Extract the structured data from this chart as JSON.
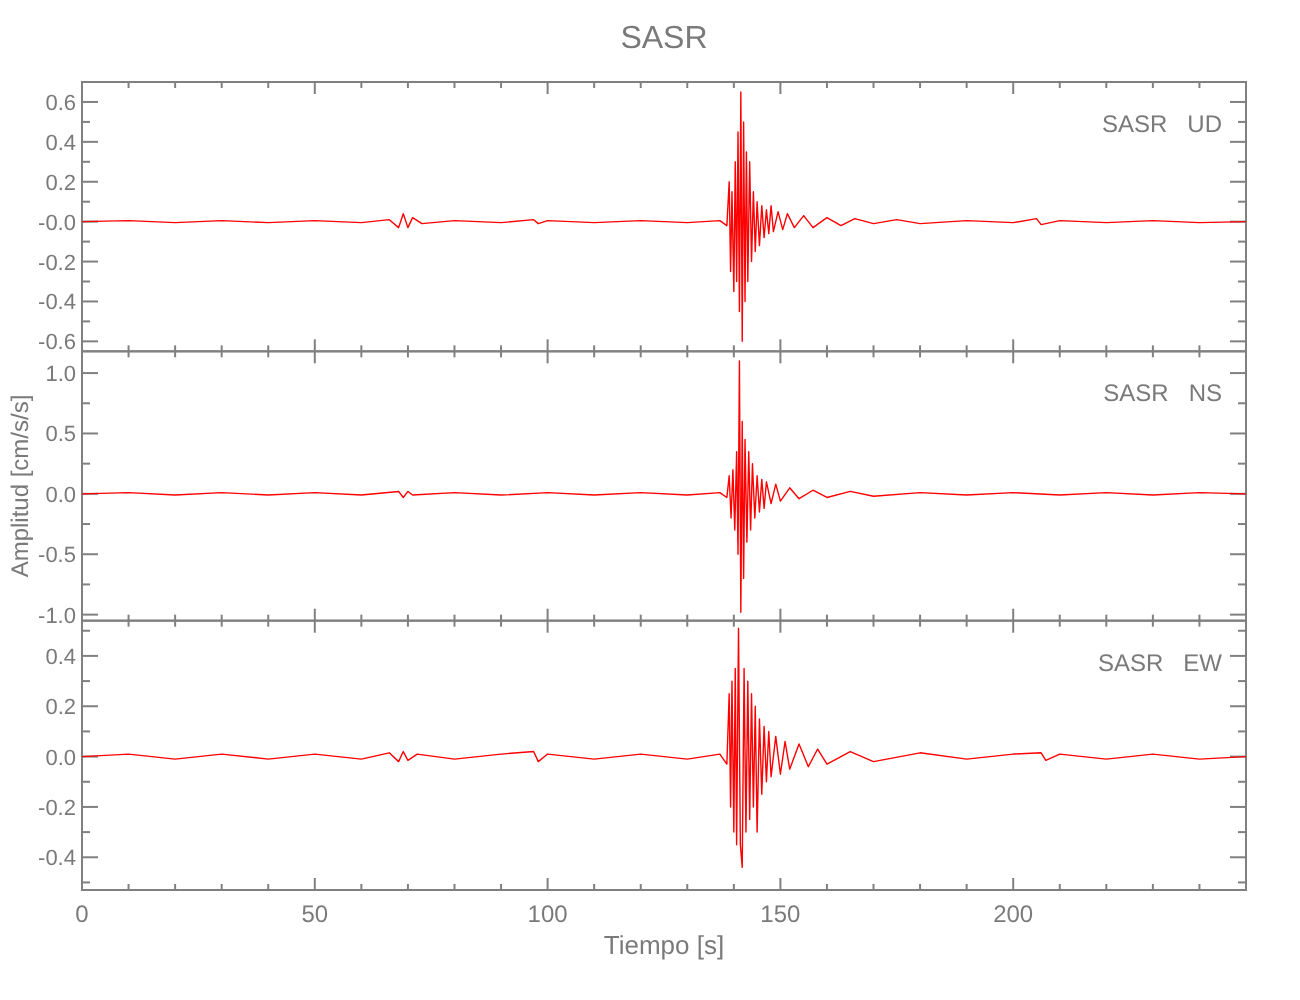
{
  "chart_data": [
    {
      "type": "line",
      "title": "SASR",
      "annotations": [
        "SASR   UD"
      ],
      "tick_labels": "y",
      "xlim": [
        0,
        250
      ],
      "ylim": [
        -0.65,
        0.7
      ],
      "xticks": [
        0,
        {
          "value": 10,
          "label": null
        },
        {
          "value": 20,
          "label": null
        },
        {
          "value": 30,
          "label": null
        },
        {
          "value": 40,
          "label": null
        },
        50,
        {
          "value": 60,
          "label": null
        },
        {
          "value": 70,
          "label": null
        },
        {
          "value": 80,
          "label": null
        },
        {
          "value": 90,
          "label": null
        },
        100,
        {
          "value": 110,
          "label": null
        },
        {
          "value": 120,
          "label": null
        },
        {
          "value": 130,
          "label": null
        },
        {
          "value": 140,
          "label": null
        },
        150,
        {
          "value": 160,
          "label": null
        },
        {
          "value": 170,
          "label": null
        },
        {
          "value": 180,
          "label": null
        },
        {
          "value": 190,
          "label": null
        },
        200,
        {
          "value": 210,
          "label": null
        },
        {
          "value": 220,
          "label": null
        },
        {
          "value": 230,
          "label": null
        },
        {
          "value": 240,
          "label": null
        }
      ],
      "yticks": [
        {
          "value": -0.6,
          "label": "-0.6"
        },
        {
          "value": -0.5,
          "label": null
        },
        {
          "value": -0.4,
          "label": "-0.4"
        },
        {
          "value": -0.3,
          "label": null
        },
        {
          "value": -0.2,
          "label": "-0.2"
        },
        {
          "value": -0.1,
          "label": null
        },
        {
          "value": 0,
          "label": "-0.0"
        },
        {
          "value": 0.1,
          "label": null
        },
        {
          "value": 0.2,
          "label": "0.2"
        },
        {
          "value": 0.3,
          "label": null
        },
        {
          "value": 0.4,
          "label": "0.4"
        },
        {
          "value": 0.5,
          "label": null
        },
        {
          "value": 0.6,
          "label": "0.6"
        }
      ],
      "series": [
        {
          "color": "#ff0000",
          "x": [
            0,
            10,
            20,
            30,
            40,
            50,
            60,
            66,
            68,
            69,
            70,
            71,
            73,
            80,
            90,
            97,
            98,
            100,
            110,
            120,
            130,
            137,
            138.5,
            139,
            139.3,
            139.6,
            140,
            140.3,
            140.6,
            140.9,
            141.2,
            141.5,
            141.8,
            142.1,
            142.4,
            142.7,
            143,
            143.4,
            143.8,
            144.2,
            144.6,
            145,
            145.5,
            146,
            146.5,
            147,
            147.5,
            148,
            148.5,
            149.5,
            150.5,
            151.5,
            153,
            155,
            157,
            160,
            163,
            166,
            170,
            175,
            180,
            190,
            200,
            205,
            206,
            210,
            220,
            230,
            240,
            250
          ],
          "values": [
            0,
            0.005,
            -0.005,
            0.005,
            -0.005,
            0.005,
            -0.005,
            0.01,
            -0.03,
            0.04,
            -0.03,
            0.02,
            -0.01,
            0.005,
            -0.005,
            0.01,
            -0.01,
            0.005,
            -0.005,
            0.005,
            -0.005,
            0.005,
            -0.02,
            0.2,
            -0.25,
            0.15,
            -0.35,
            0.3,
            -0.3,
            0.45,
            -0.45,
            0.65,
            -0.6,
            0.5,
            -0.4,
            0.35,
            -0.3,
            0.3,
            -0.2,
            0.15,
            -0.15,
            0.1,
            -0.12,
            0.08,
            -0.08,
            0.06,
            -0.06,
            0.08,
            -0.05,
            0.05,
            -0.04,
            0.04,
            -0.03,
            0.03,
            -0.03,
            0.02,
            -0.02,
            0.015,
            -0.01,
            0.01,
            -0.01,
            0.005,
            -0.005,
            0.015,
            -0.015,
            0.005,
            -0.005,
            0.005,
            -0.005,
            0
          ]
        }
      ]
    },
    {
      "type": "line",
      "ylabel": "Amplitud [cm/s/s]",
      "annotations": [
        "SASR   NS"
      ],
      "tick_labels": "y",
      "xlim": [
        0,
        250
      ],
      "ylim": [
        -1.05,
        1.18
      ],
      "xticks": [
        0,
        {
          "value": 10,
          "label": null
        },
        {
          "value": 20,
          "label": null
        },
        {
          "value": 30,
          "label": null
        },
        {
          "value": 40,
          "label": null
        },
        50,
        {
          "value": 60,
          "label": null
        },
        {
          "value": 70,
          "label": null
        },
        {
          "value": 80,
          "label": null
        },
        {
          "value": 90,
          "label": null
        },
        100,
        {
          "value": 110,
          "label": null
        },
        {
          "value": 120,
          "label": null
        },
        {
          "value": 130,
          "label": null
        },
        {
          "value": 140,
          "label": null
        },
        150,
        {
          "value": 160,
          "label": null
        },
        {
          "value": 170,
          "label": null
        },
        {
          "value": 180,
          "label": null
        },
        {
          "value": 190,
          "label": null
        },
        200,
        {
          "value": 210,
          "label": null
        },
        {
          "value": 220,
          "label": null
        },
        {
          "value": 230,
          "label": null
        },
        {
          "value": 240,
          "label": null
        }
      ],
      "yticks": [
        {
          "value": -1,
          "label": "-1.0"
        },
        {
          "value": -0.75,
          "label": null
        },
        {
          "value": -0.5,
          "label": "-0.5"
        },
        {
          "value": -0.25,
          "label": null
        },
        {
          "value": 0,
          "label": "0.0"
        },
        {
          "value": 0.25,
          "label": null
        },
        {
          "value": 0.5,
          "label": "0.5"
        },
        {
          "value": 0.75,
          "label": null
        },
        {
          "value": 1,
          "label": "1.0"
        }
      ],
      "series": [
        {
          "color": "#ff0000",
          "x": [
            0,
            10,
            20,
            30,
            40,
            50,
            60,
            68,
            69,
            70,
            71,
            80,
            90,
            100,
            110,
            120,
            130,
            137,
            138.5,
            139,
            139.4,
            139.8,
            140.2,
            140.6,
            140.9,
            141.2,
            141.5,
            141.8,
            142.1,
            142.4,
            142.8,
            143.2,
            143.6,
            144,
            144.5,
            145,
            145.5,
            146,
            146.5,
            147,
            148,
            149,
            150,
            152,
            154,
            157,
            160,
            165,
            170,
            180,
            190,
            200,
            210,
            220,
            230,
            240,
            250
          ],
          "values": [
            0,
            0.01,
            -0.01,
            0.01,
            -0.01,
            0.01,
            -0.01,
            0.02,
            -0.03,
            0.02,
            -0.01,
            0.01,
            -0.01,
            0.01,
            -0.01,
            0.01,
            -0.01,
            0.01,
            -0.03,
            0.15,
            -0.2,
            0.2,
            -0.3,
            0.35,
            -0.5,
            1.1,
            -0.98,
            0.6,
            -0.7,
            0.45,
            -0.4,
            0.35,
            -0.3,
            0.25,
            -0.2,
            0.15,
            -0.15,
            0.12,
            -0.12,
            0.1,
            -0.08,
            0.08,
            -0.06,
            0.05,
            -0.04,
            0.03,
            -0.03,
            0.02,
            -0.02,
            0.01,
            -0.01,
            0.01,
            -0.01,
            0.01,
            -0.01,
            0.01,
            0
          ]
        }
      ]
    },
    {
      "type": "line",
      "xlabel": "Tiempo [s]",
      "annotations": [
        "SASR   EW"
      ],
      "xlim": [
        0,
        250
      ],
      "ylim": [
        -0.53,
        0.54
      ],
      "xticks": [
        0,
        {
          "value": 10,
          "label": null
        },
        {
          "value": 20,
          "label": null
        },
        {
          "value": 30,
          "label": null
        },
        {
          "value": 40,
          "label": null
        },
        50,
        {
          "value": 60,
          "label": null
        },
        {
          "value": 70,
          "label": null
        },
        {
          "value": 80,
          "label": null
        },
        {
          "value": 90,
          "label": null
        },
        100,
        {
          "value": 110,
          "label": null
        },
        {
          "value": 120,
          "label": null
        },
        {
          "value": 130,
          "label": null
        },
        {
          "value": 140,
          "label": null
        },
        150,
        {
          "value": 160,
          "label": null
        },
        {
          "value": 170,
          "label": null
        },
        {
          "value": 180,
          "label": null
        },
        {
          "value": 190,
          "label": null
        },
        200,
        {
          "value": 210,
          "label": null
        },
        {
          "value": 220,
          "label": null
        },
        {
          "value": 230,
          "label": null
        },
        {
          "value": 240,
          "label": null
        }
      ],
      "yticks": [
        {
          "value": -0.5,
          "label": null
        },
        {
          "value": -0.4,
          "label": "-0.4"
        },
        {
          "value": -0.3,
          "label": null
        },
        {
          "value": -0.2,
          "label": "-0.2"
        },
        {
          "value": -0.1,
          "label": null
        },
        {
          "value": 0,
          "label": "0.0"
        },
        {
          "value": 0.1,
          "label": null
        },
        {
          "value": 0.2,
          "label": "0.2"
        },
        {
          "value": 0.3,
          "label": null
        },
        {
          "value": 0.4,
          "label": "0.4"
        },
        {
          "value": 0.5,
          "label": null
        }
      ],
      "series": [
        {
          "color": "#ff0000",
          "x": [
            0,
            10,
            20,
            30,
            40,
            50,
            60,
            66,
            68,
            69,
            70,
            72,
            80,
            90,
            97,
            98,
            100,
            110,
            120,
            130,
            137,
            138.5,
            139,
            139.3,
            139.6,
            140,
            140.3,
            140.6,
            141,
            141.4,
            141.8,
            142.2,
            142.6,
            143,
            143.4,
            143.8,
            144.2,
            144.6,
            145,
            145.5,
            146,
            146.5,
            147,
            147.5,
            148,
            149,
            150,
            151,
            152,
            154,
            156,
            158,
            160,
            165,
            170,
            180,
            190,
            200,
            206,
            207,
            210,
            220,
            230,
            240,
            250
          ],
          "values": [
            0,
            0.01,
            -0.01,
            0.01,
            -0.01,
            0.01,
            -0.01,
            0.015,
            -0.02,
            0.02,
            -0.015,
            0.01,
            -0.01,
            0.01,
            0.02,
            -0.02,
            0.01,
            -0.01,
            0.01,
            -0.01,
            0.01,
            -0.03,
            0.25,
            -0.2,
            0.3,
            -0.3,
            0.35,
            -0.35,
            0.51,
            -0.35,
            -0.44,
            0.35,
            -0.3,
            0.3,
            -0.25,
            0.25,
            -0.2,
            0.2,
            -0.3,
            0.15,
            -0.15,
            0.12,
            -0.1,
            0.1,
            -0.08,
            0.08,
            -0.07,
            0.06,
            -0.05,
            0.05,
            -0.04,
            0.03,
            -0.03,
            0.02,
            -0.02,
            0.015,
            -0.01,
            0.01,
            0.015,
            -0.015,
            0.01,
            -0.01,
            0.01,
            -0.01,
            0
          ]
        }
      ]
    }
  ]
}
